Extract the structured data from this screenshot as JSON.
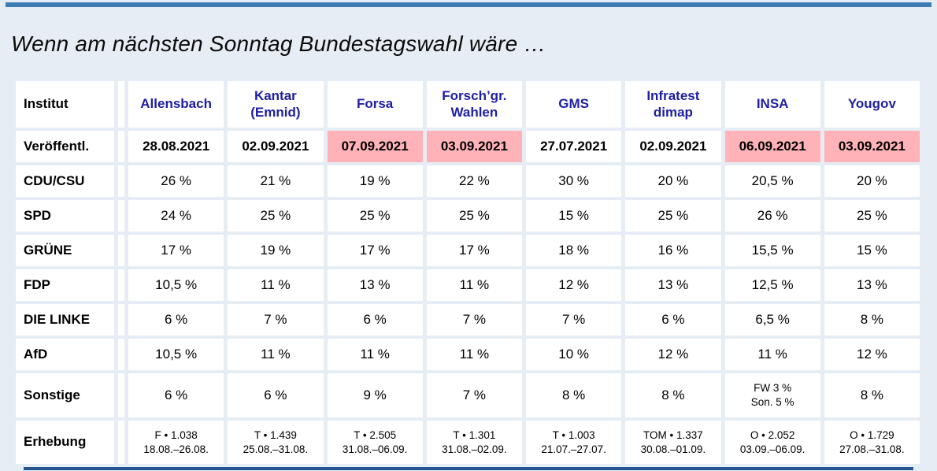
{
  "title": "Wenn am nächsten Sonntag Bundestagswahl wäre …",
  "colors": {
    "top_bar": "#3d7cb2",
    "bottom_bar": "#27568e",
    "background": "#e7edf4",
    "cell_background": "#ffffff",
    "header_text": "#1e1ea5",
    "highlight_pink": "#ffb3b8",
    "body_text": "#000000"
  },
  "chart_data": {
    "type": "table",
    "title": "Wenn am nächsten Sonntag Bundestagswahl wäre …",
    "corner_header": "Institut",
    "institutes": [
      "Allensbach",
      "Kantar (Emnid)",
      "Forsa",
      "Forsch’gr. Wahlen",
      "GMS",
      "Infratest dimap",
      "INSA",
      "Yougov"
    ],
    "published_row": {
      "label": "Veröffentl.",
      "values": [
        "28.08.2021",
        "02.09.2021",
        "07.09.2021",
        "03.09.2021",
        "27.07.2021",
        "02.09.2021",
        "06.09.2021",
        "03.09.2021"
      ],
      "highlighted": [
        false,
        false,
        true,
        true,
        false,
        false,
        true,
        true
      ]
    },
    "party_rows": [
      {
        "label": "CDU/CSU",
        "values": [
          "26 %",
          "21 %",
          "19 %",
          "22 %",
          "30 %",
          "20 %",
          "20,5 %",
          "20 %"
        ]
      },
      {
        "label": "SPD",
        "values": [
          "24 %",
          "25 %",
          "25 %",
          "25 %",
          "15 %",
          "25 %",
          "26 %",
          "25 %"
        ]
      },
      {
        "label": "GRÜNE",
        "values": [
          "17 %",
          "19 %",
          "17 %",
          "17 %",
          "18 %",
          "16 %",
          "15,5 %",
          "15 %"
        ]
      },
      {
        "label": "FDP",
        "values": [
          "10,5 %",
          "11 %",
          "13 %",
          "11 %",
          "12 %",
          "13 %",
          "12,5 %",
          "13 %"
        ]
      },
      {
        "label": "DIE LINKE",
        "values": [
          "6 %",
          "7 %",
          "6 %",
          "7 %",
          "7 %",
          "6 %",
          "6,5 %",
          "8 %"
        ]
      },
      {
        "label": "AfD",
        "values": [
          "10,5 %",
          "11 %",
          "11 %",
          "11 %",
          "10 %",
          "12 %",
          "11 %",
          "12 %"
        ]
      },
      {
        "label": "Sonstige",
        "values": [
          "6 %",
          "6 %",
          "9 %",
          "7 %",
          "8 %",
          "8 %",
          "FW 3 %\nSon. 5 %",
          "8 %"
        ]
      }
    ],
    "survey_row": {
      "label": "Erhebung",
      "values": [
        "F • 1.038\n18.08.–26.08.",
        "T • 1.439\n25.08.–31.08.",
        "T • 2.505\n31.08.–06.09.",
        "T • 1.301\n31.08.–02.09.",
        "T • 1.003\n21.07.–27.07.",
        "TOM • 1.337\n30.08.–01.09.",
        "O • 2.052\n03.09.–06.09.",
        "O • 1.729\n27.08.–31.08."
      ]
    }
  }
}
